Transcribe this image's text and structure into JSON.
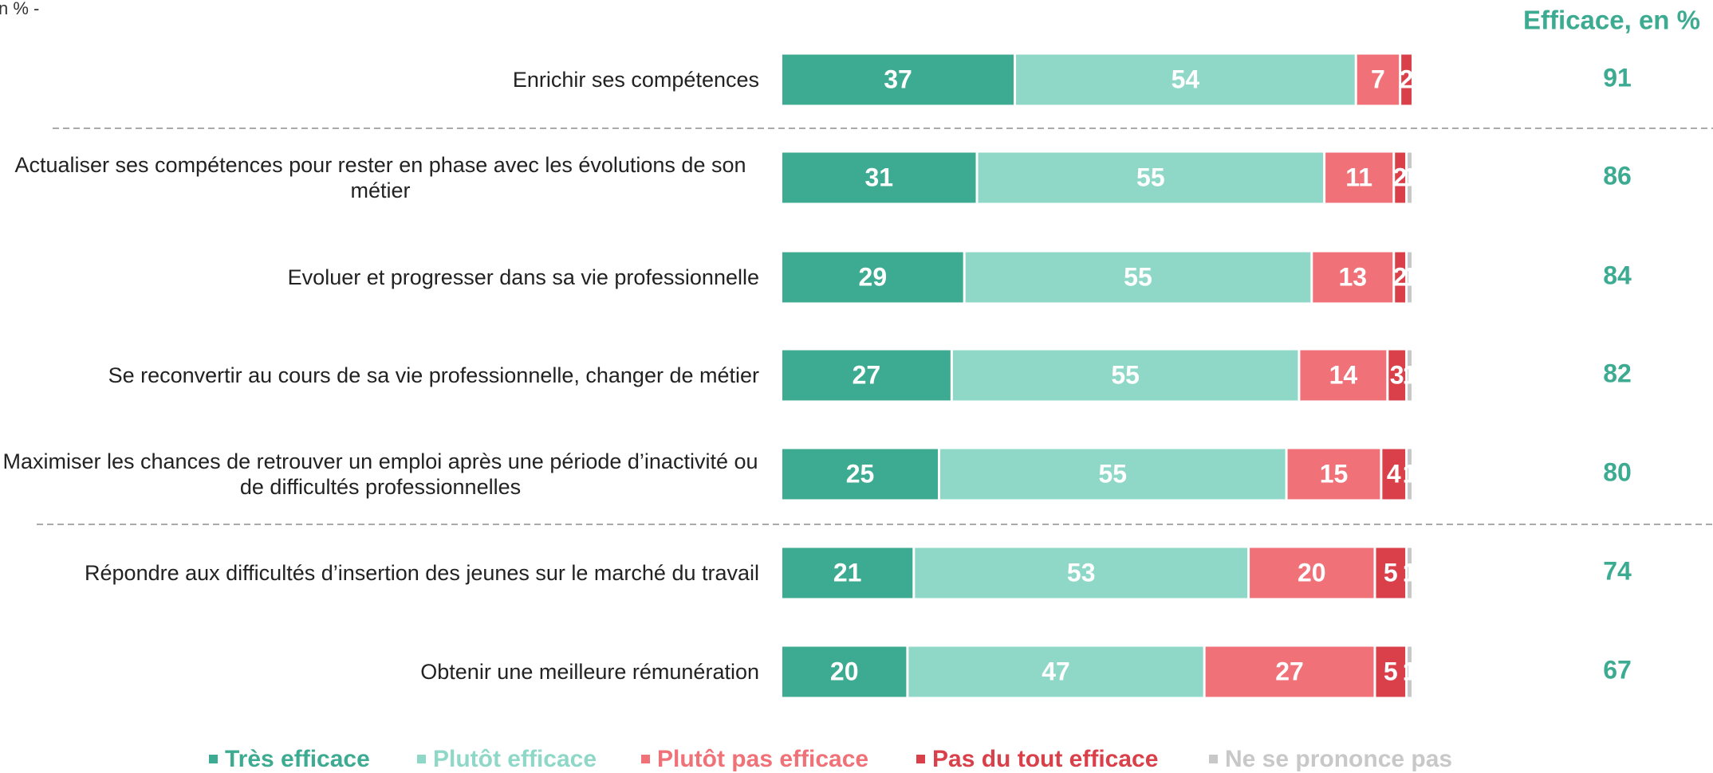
{
  "chart_data": {
    "type": "stacked-barh",
    "subtitle": "n % -",
    "categories": [
      "Enrichir ses compétences",
      "Actualiser ses compétences pour rester en phase avec les évolutions de son métier",
      "Evoluer et progresser dans sa vie professionnelle",
      "Se reconvertir au cours de sa vie professionnelle, changer de métier",
      "Maximiser les chances de retrouver un emploi après une période d’inactivité ou de difficultés professionnelles",
      "Répondre aux difficultés d’insertion des jeunes sur le marché du travail",
      "Obtenir une meilleure rémunération"
    ],
    "series": [
      {
        "name": "Très efficace",
        "color": "#3dab91",
        "values": [
          37,
          31,
          29,
          27,
          25,
          21,
          20
        ]
      },
      {
        "name": "Plutôt efficace",
        "color": "#8fd8c8",
        "values": [
          54,
          55,
          55,
          55,
          55,
          53,
          47
        ]
      },
      {
        "name": "Plutôt pas efficace",
        "color": "#f07177",
        "values": [
          7,
          11,
          13,
          14,
          15,
          20,
          27
        ]
      },
      {
        "name": "Pas du tout efficace",
        "color": "#d9404a",
        "values": [
          2,
          2,
          2,
          3,
          4,
          5,
          5
        ]
      },
      {
        "name": "Ne se prononce pas",
        "color": "#c8c8c8",
        "values": [
          0,
          1,
          1,
          1,
          1,
          1,
          1
        ]
      }
    ],
    "xlim": [
      0,
      100
    ],
    "efficace": {
      "title": "Efficace, en %",
      "color": "#3dab91",
      "values": [
        91,
        86,
        84,
        82,
        80,
        74,
        67
      ]
    }
  }
}
